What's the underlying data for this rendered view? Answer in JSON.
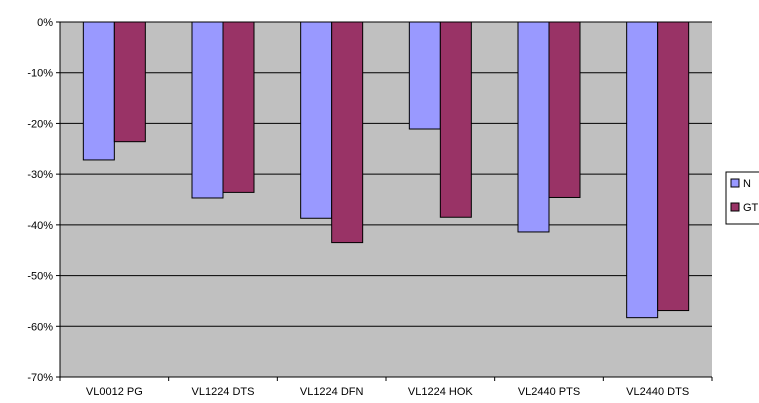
{
  "chart_data": {
    "type": "bar",
    "categories": [
      "VL0012 PG",
      "VL1224 DTS",
      "VL1224 DFN",
      "VL1224 HOK",
      "VL2440 PTS",
      "VL2440 DTS"
    ],
    "series": [
      {
        "name": "N",
        "values": [
          -27.2,
          -34.7,
          -38.7,
          -21.1,
          -41.4,
          -58.3
        ],
        "color": "#9999ff"
      },
      {
        "name": "GT",
        "values": [
          -23.6,
          -33.6,
          -43.5,
          -38.5,
          -34.6,
          -56.9
        ],
        "color": "#993366"
      }
    ],
    "ylim": [
      -70,
      0
    ],
    "yticks": [
      0,
      -10,
      -20,
      -30,
      -40,
      -50,
      -60,
      -70
    ],
    "ytick_labels": [
      "0%",
      "-10%",
      "-20%",
      "-30%",
      "-40%",
      "-50%",
      "-60%",
      "-70%"
    ],
    "title": "",
    "xlabel": "",
    "ylabel": "",
    "grid": true,
    "legend_position": "right",
    "plot_background": "#c0c0c0"
  }
}
